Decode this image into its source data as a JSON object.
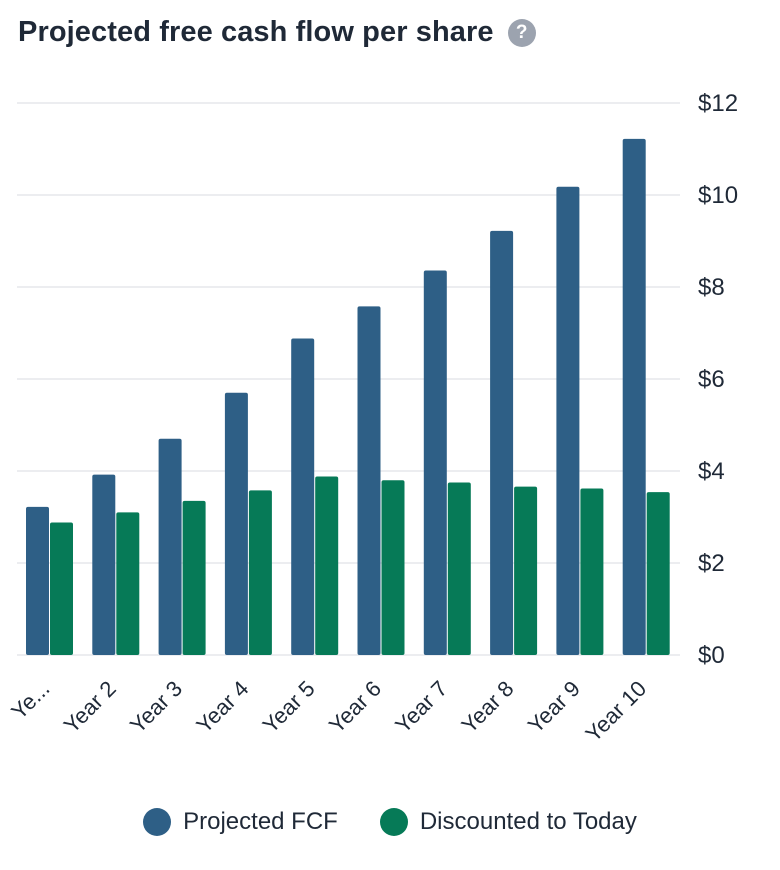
{
  "header": {
    "title": "Projected free cash flow per share",
    "help_icon": "question-circle-icon"
  },
  "colors": {
    "projected": "#2e5f86",
    "discounted": "#067a57",
    "grid": "#e5e7eb",
    "text": "#1f2937",
    "help": "#9ca3af"
  },
  "chart_data": {
    "type": "bar",
    "title": "Projected free cash flow per share",
    "categories": [
      "Ye...",
      "Year 2",
      "Year 3",
      "Year 4",
      "Year 5",
      "Year 6",
      "Year 7",
      "Year 8",
      "Year 9",
      "Year 10"
    ],
    "series": [
      {
        "name": "Projected FCF",
        "values": [
          3.22,
          3.92,
          4.7,
          5.7,
          6.88,
          7.58,
          8.36,
          9.22,
          10.18,
          11.22
        ]
      },
      {
        "name": "Discounted to Today",
        "values": [
          2.88,
          3.1,
          3.35,
          3.58,
          3.88,
          3.8,
          3.75,
          3.66,
          3.62,
          3.54
        ]
      }
    ],
    "y_ticks": [
      "$0",
      "$2",
      "$4",
      "$6",
      "$8",
      "$10",
      "$12"
    ],
    "ylim": [
      0,
      12
    ],
    "y_axis_position": "right",
    "grid": true,
    "legend_position": "bottom"
  },
  "legend": [
    {
      "label": "Projected FCF"
    },
    {
      "label": "Discounted to Today"
    }
  ]
}
